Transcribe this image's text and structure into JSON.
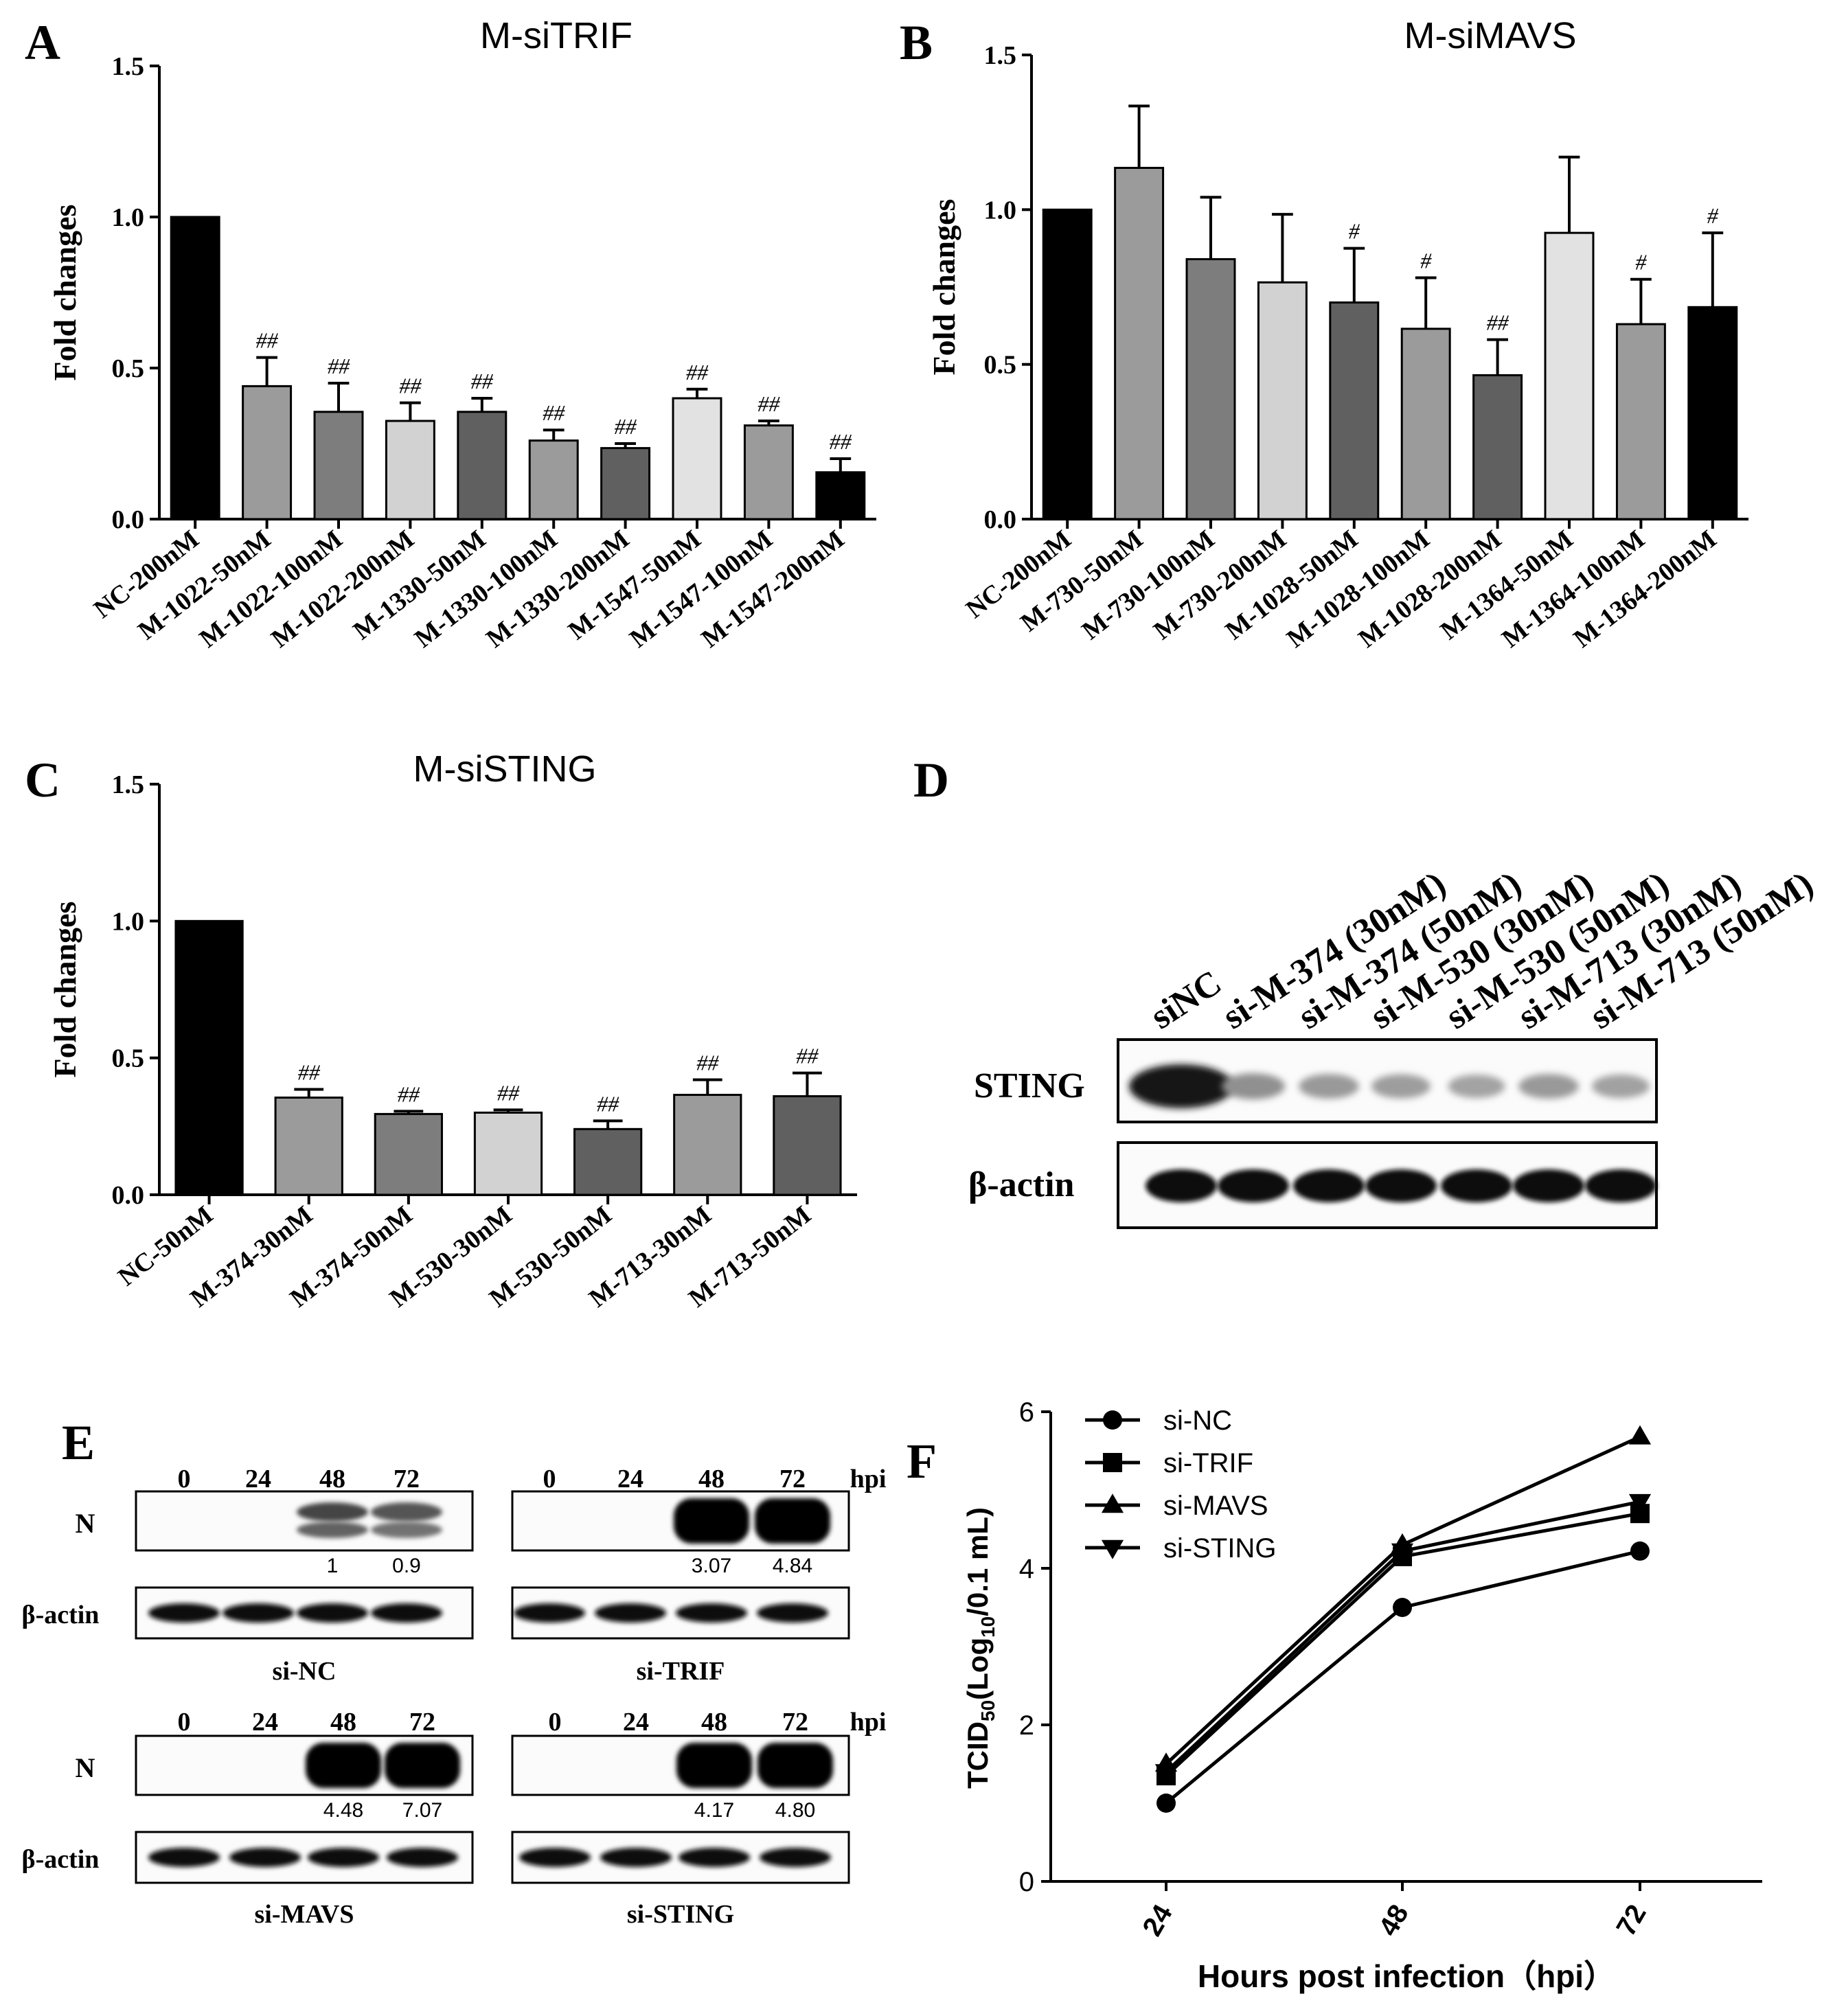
{
  "figure": {
    "panels": {
      "A": "A",
      "B": "B",
      "C": "C",
      "D": "D",
      "E": "E",
      "F": "F"
    }
  },
  "chart_data": [
    {
      "id": "A",
      "type": "bar",
      "title": "M-siTRIF",
      "ylabel": "Fold changes",
      "ylim": [
        0,
        1.5
      ],
      "yticks": [
        "0.0",
        "0.5",
        "1.0",
        "1.5"
      ],
      "categories": [
        "NC-200nM",
        "M-1022-50nM",
        "M-1022-100nM",
        "M-1022-200nM",
        "M-1330-50nM",
        "M-1330-100nM",
        "M-1330-200nM",
        "M-1547-50nM",
        "M-1547-100nM",
        "M-1547-200nM"
      ],
      "values": [
        1.0,
        0.44,
        0.355,
        0.325,
        0.355,
        0.26,
        0.235,
        0.4,
        0.31,
        0.155
      ],
      "errors": [
        0,
        0.095,
        0.095,
        0.06,
        0.045,
        0.035,
        0.015,
        0.03,
        0.015,
        0.045
      ],
      "labels": [
        "",
        "##",
        "##",
        "##",
        "##",
        "##",
        "##",
        "##",
        "##",
        "##"
      ],
      "colors": [
        "#000000",
        "#9b9b9b",
        "#7d7d7d",
        "#d2d2d2",
        "#606060",
        "#9b9b9b",
        "#606060",
        "#e2e2e2",
        "#9b9b9b",
        "#000000"
      ]
    },
    {
      "id": "B",
      "type": "bar",
      "title": "M-siMAVS",
      "ylabel": "Fold changes",
      "ylim": [
        0,
        1.5
      ],
      "yticks": [
        "0.0",
        "0.5",
        "1.0",
        "1.5"
      ],
      "categories": [
        "NC-200nM",
        "M-730-50nM",
        "M-730-100nM",
        "M-730-200nM",
        "M-1028-50nM",
        "M-1028-100nM",
        "M-1028-200nM",
        "M-1364-50nM",
        "M-1364-100nM",
        "M-1364-200nM"
      ],
      "values": [
        1.0,
        1.135,
        0.84,
        0.765,
        0.7,
        0.615,
        0.465,
        0.925,
        0.63,
        0.685
      ],
      "errors": [
        0,
        0.2,
        0.2,
        0.22,
        0.175,
        0.165,
        0.115,
        0.245,
        0.145,
        0.24
      ],
      "labels": [
        "",
        "",
        "",
        "",
        "#",
        "#",
        "##",
        "",
        "#",
        "#"
      ],
      "colors": [
        "#000000",
        "#9b9b9b",
        "#7d7d7d",
        "#d2d2d2",
        "#606060",
        "#9b9b9b",
        "#606060",
        "#e2e2e2",
        "#9b9b9b",
        "#000000"
      ]
    },
    {
      "id": "C",
      "type": "bar",
      "title": "M-siSTING",
      "ylabel": "Fold changes",
      "ylim": [
        0,
        1.5
      ],
      "yticks": [
        "0.0",
        "0.5",
        "1.0",
        "1.5"
      ],
      "categories": [
        "NC-50nM",
        "M-374-30nM",
        "M-374-50nM",
        "M-530-30nM",
        "M-530-50nM",
        "M-713-30nM",
        "M-713-50nM"
      ],
      "values": [
        1.0,
        0.355,
        0.295,
        0.3,
        0.24,
        0.365,
        0.36
      ],
      "errors": [
        0,
        0.03,
        0.01,
        0.01,
        0.03,
        0.055,
        0.085
      ],
      "labels": [
        "",
        "##",
        "##",
        "##",
        "##",
        "##",
        "##"
      ],
      "colors": [
        "#000000",
        "#9b9b9b",
        "#7d7d7d",
        "#d2d2d2",
        "#606060",
        "#9b9b9b",
        "#606060"
      ]
    },
    {
      "id": "F",
      "type": "line",
      "ylabel_main": "TCID",
      "ylabel_sub": "50",
      "ylabel_mid": "(Log",
      "ylabel_sub2": "10",
      "ylabel_end": "/0.1 mL)",
      "xlabel": "Hours post infection（hpi）",
      "ylim": [
        0,
        6
      ],
      "yticks": [
        "0",
        "2",
        "4",
        "6"
      ],
      "x": [
        24,
        48,
        72
      ],
      "xticks": [
        "24",
        "48",
        "72"
      ],
      "series": [
        {
          "name": "si-NC",
          "marker": "circle",
          "values": [
            1.0,
            3.5,
            4.22
          ]
        },
        {
          "name": "si-TRIF",
          "marker": "square",
          "values": [
            1.35,
            4.15,
            4.7
          ]
        },
        {
          "name": "si-MAVS",
          "marker": "triangle-up",
          "values": [
            1.5,
            4.3,
            5.68
          ]
        },
        {
          "name": "si-STING",
          "marker": "triangle-down",
          "values": [
            1.4,
            4.22,
            4.85
          ]
        }
      ],
      "legend_position": "top-left"
    }
  ],
  "panel_D": {
    "lanes": [
      "siNC",
      "si-M-374 (30nM)",
      "si-M-374 (50nM)",
      "si-M-530 (30nM)",
      "si-M-530 (50nM)",
      "si-M-713 (30nM)",
      "si-M-713 (50nM)"
    ],
    "rows": [
      "STING",
      "β-actin"
    ],
    "sting_intensity": [
      1.0,
      0.35,
      0.3,
      0.28,
      0.25,
      0.3,
      0.26
    ]
  },
  "panel_E": {
    "times": [
      "0",
      "24",
      "48",
      "72"
    ],
    "hpi": "hpi",
    "row_n": "N",
    "row_actin": "β-actin",
    "blots": [
      {
        "label": "si-NC",
        "quant": [
          "1",
          "0.9"
        ],
        "n_intensity": [
          0,
          0,
          0.75,
          0.6
        ],
        "show_hpi": false
      },
      {
        "label": "si-TRIF",
        "quant": [
          "3.07",
          "4.84"
        ],
        "n_intensity": [
          0,
          0,
          1.0,
          1.0
        ],
        "show_hpi": true
      },
      {
        "label": "si-MAVS",
        "quant": [
          "4.48",
          "7.07"
        ],
        "n_intensity": [
          0,
          0,
          1.0,
          1.0
        ],
        "show_hpi": false
      },
      {
        "label": "si-STING",
        "quant": [
          "4.17",
          "4.80"
        ],
        "n_intensity": [
          0,
          0,
          1.0,
          1.0
        ],
        "show_hpi": true
      }
    ]
  }
}
